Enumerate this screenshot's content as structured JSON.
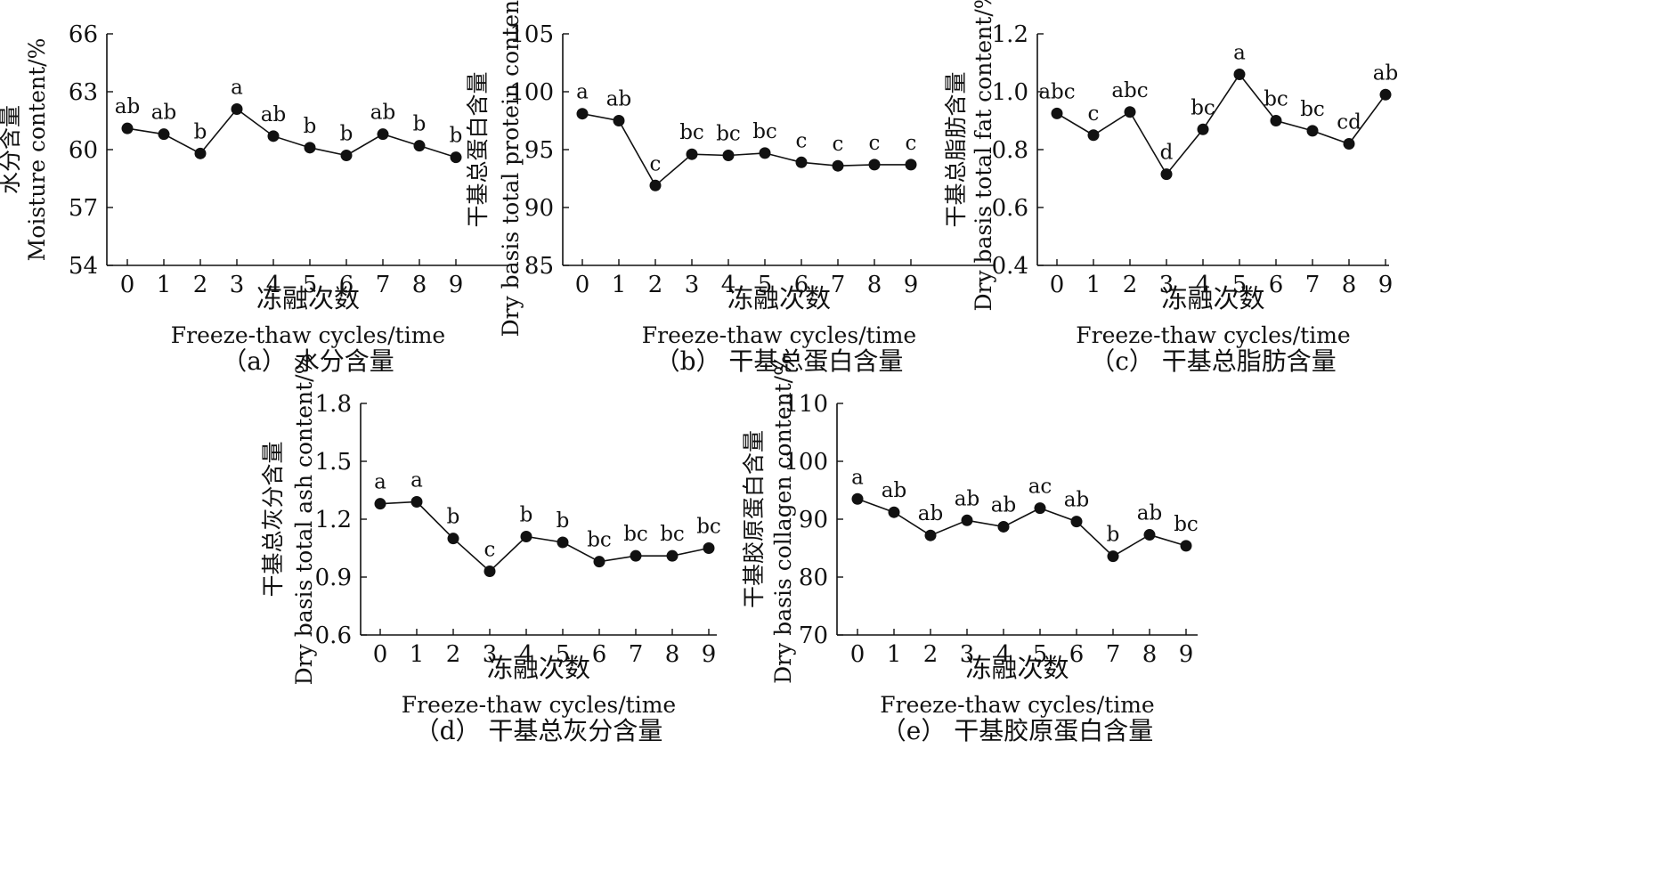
{
  "chart_data": [
    {
      "id": "a",
      "type": "line",
      "title": "",
      "ylabel_cn": "水分含量",
      "ylabel_en": "Moisture content/%",
      "xlabel_cn": "冻融次数",
      "xlabel_en": "Freeze-thaw cycles/time",
      "caption": "（a） 水分含量",
      "x": [
        0,
        1,
        2,
        3,
        4,
        5,
        6,
        7,
        8,
        9
      ],
      "values": [
        61.1,
        60.8,
        59.8,
        62.1,
        60.7,
        60.1,
        59.7,
        60.8,
        60.2,
        59.6
      ],
      "labels": [
        "ab",
        "ab",
        "b",
        "a",
        "ab",
        "b",
        "b",
        "ab",
        "b",
        "b"
      ],
      "ylim": [
        54,
        66
      ],
      "yticks": [
        "54",
        "57",
        "60",
        "63",
        "66"
      ],
      "xticks": [
        "0",
        "1",
        "2",
        "3",
        "4",
        "5",
        "6",
        "7",
        "8",
        "9"
      ],
      "grid": false
    },
    {
      "id": "b",
      "type": "line",
      "title": "",
      "ylabel_cn": "干基总蛋白含量",
      "ylabel_en": "Dry basis total protein content/%",
      "xlabel_cn": "冻融次数",
      "xlabel_en": "Freeze-thaw cycles/time",
      "caption": "（b） 干基总蛋白含量",
      "x": [
        0,
        1,
        2,
        3,
        4,
        5,
        6,
        7,
        8,
        9
      ],
      "values": [
        98.1,
        97.5,
        91.9,
        94.6,
        94.5,
        94.7,
        93.9,
        93.6,
        93.7,
        93.7
      ],
      "labels": [
        "a",
        "ab",
        "c",
        "bc",
        "bc",
        "bc",
        "c",
        "c",
        "c",
        "c"
      ],
      "ylim": [
        85,
        105
      ],
      "yticks": [
        "85",
        "90",
        "95",
        "100",
        "105"
      ],
      "xticks": [
        "0",
        "1",
        "2",
        "3",
        "4",
        "5",
        "6",
        "7",
        "8",
        "9"
      ],
      "grid": false
    },
    {
      "id": "c",
      "type": "line",
      "title": "",
      "ylabel_cn": "干基总脂肪含量",
      "ylabel_en": "Dry basis total fat content/%",
      "xlabel_cn": "冻融次数",
      "xlabel_en": "Freeze-thaw cycles/time",
      "caption": "（c） 干基总脂肪含量",
      "x": [
        0,
        1,
        2,
        3,
        4,
        5,
        6,
        7,
        8,
        9
      ],
      "values": [
        0.925,
        0.85,
        0.93,
        0.715,
        0.87,
        1.06,
        0.9,
        0.865,
        0.82,
        0.99
      ],
      "labels": [
        "abc",
        "c",
        "abc",
        "d",
        "bc",
        "a",
        "bc",
        "bc",
        "cd",
        "ab"
      ],
      "ylim": [
        0.4,
        1.2
      ],
      "yticks": [
        "0.4",
        "0.6",
        "0.8",
        "1.0",
        "1.2"
      ],
      "xticks": [
        "0",
        "1",
        "2",
        "3",
        "4",
        "5",
        "6",
        "7",
        "8",
        "9"
      ],
      "grid": false
    },
    {
      "id": "d",
      "type": "line",
      "title": "",
      "ylabel_cn": "干基总灰分含量",
      "ylabel_en": "Dry basis total ash content/%",
      "xlabel_cn": "冻融次数",
      "xlabel_en": "Freeze-thaw cycles/time",
      "caption": "（d） 干基总灰分含量",
      "x": [
        0,
        1,
        2,
        3,
        4,
        5,
        6,
        7,
        8,
        9
      ],
      "values": [
        1.28,
        1.29,
        1.1,
        0.93,
        1.11,
        1.08,
        0.98,
        1.01,
        1.01,
        1.05
      ],
      "labels": [
        "a",
        "a",
        "b",
        "c",
        "b",
        "b",
        "bc",
        "bc",
        "bc",
        "bc"
      ],
      "ylim": [
        0.6,
        1.8
      ],
      "yticks": [
        "0.6",
        "0.9",
        "1.2",
        "1.5",
        "1.8"
      ],
      "xticks": [
        "0",
        "1",
        "2",
        "3",
        "4",
        "5",
        "6",
        "7",
        "8",
        "9"
      ],
      "grid": false
    },
    {
      "id": "e",
      "type": "line",
      "title": "",
      "ylabel_cn": "干基胶原蛋白含量",
      "ylabel_en": "Dry basis collagen content/%",
      "xlabel_cn": "冻融次数",
      "xlabel_en": "Freeze-thaw cycles/time",
      "caption": "（e） 干基胶原蛋白含量",
      "x": [
        0,
        1,
        2,
        3,
        4,
        5,
        6,
        7,
        8,
        9
      ],
      "values": [
        93.5,
        91.2,
        87.2,
        89.8,
        88.7,
        91.9,
        89.6,
        83.6,
        87.3,
        85.4
      ],
      "labels": [
        "a",
        "ab",
        "ab",
        "ab",
        "ab",
        "ac",
        "ab",
        "b",
        "ab",
        "bc"
      ],
      "ylim": [
        70,
        110
      ],
      "yticks": [
        "70",
        "80",
        "90",
        "100",
        "110"
      ],
      "xticks": [
        "0",
        "1",
        "2",
        "3",
        "4",
        "5",
        "6",
        "7",
        "8",
        "9"
      ],
      "grid": false
    }
  ]
}
